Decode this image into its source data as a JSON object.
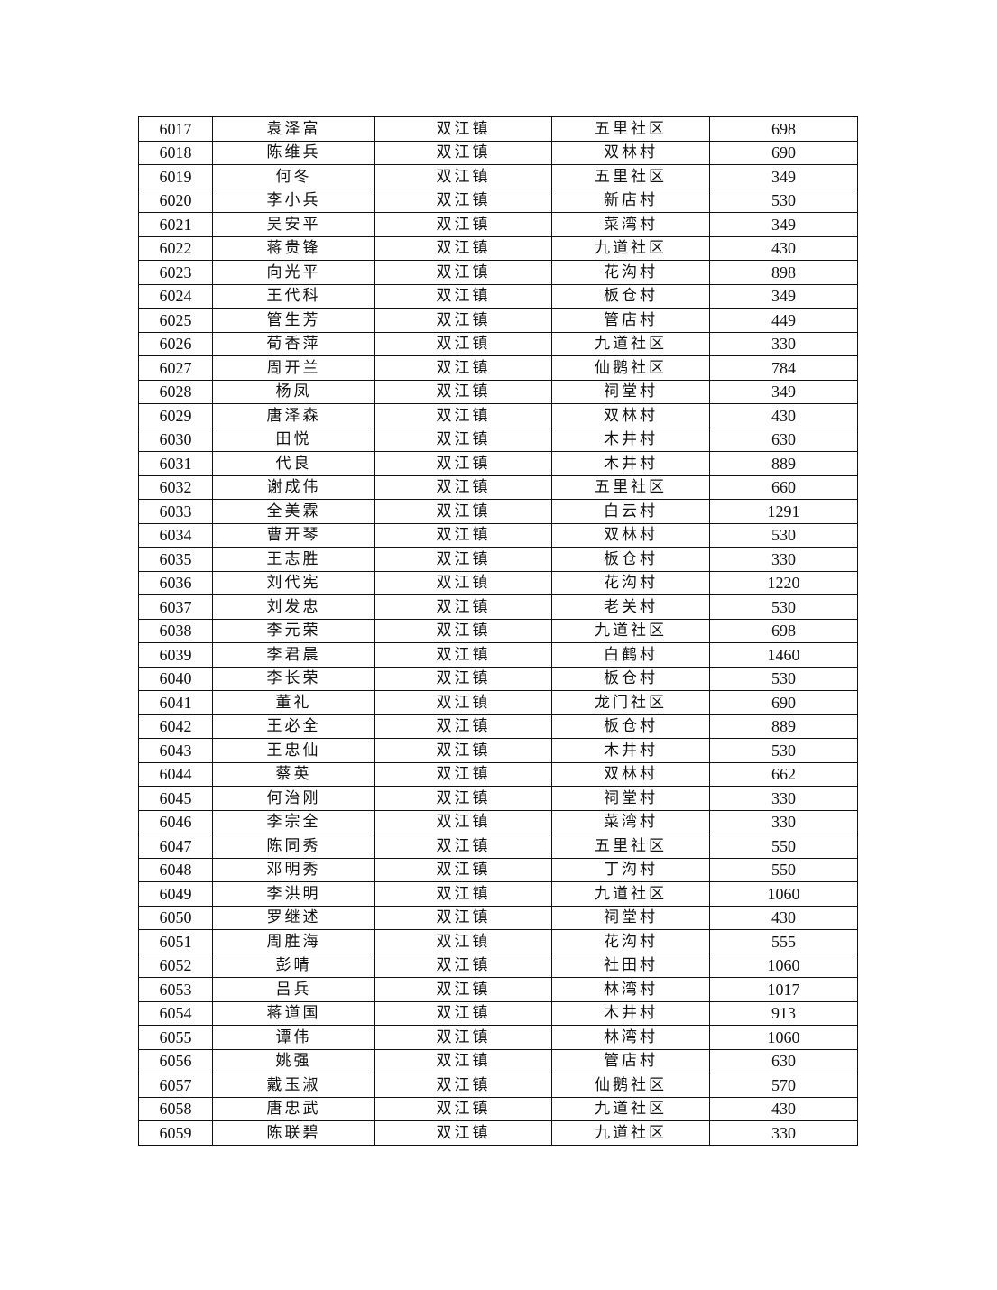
{
  "table": {
    "rows": [
      [
        "6017",
        "袁泽富",
        "双江镇",
        "五里社区",
        "698"
      ],
      [
        "6018",
        "陈维兵",
        "双江镇",
        "双林村",
        "690"
      ],
      [
        "6019",
        "何冬",
        "双江镇",
        "五里社区",
        "349"
      ],
      [
        "6020",
        "李小兵",
        "双江镇",
        "新店村",
        "530"
      ],
      [
        "6021",
        "吴安平",
        "双江镇",
        "菜湾村",
        "349"
      ],
      [
        "6022",
        "蒋贵锋",
        "双江镇",
        "九道社区",
        "430"
      ],
      [
        "6023",
        "向光平",
        "双江镇",
        "花沟村",
        "898"
      ],
      [
        "6024",
        "王代科",
        "双江镇",
        "板仓村",
        "349"
      ],
      [
        "6025",
        "管生芳",
        "双江镇",
        "管店村",
        "449"
      ],
      [
        "6026",
        "荀香萍",
        "双江镇",
        "九道社区",
        "330"
      ],
      [
        "6027",
        "周开兰",
        "双江镇",
        "仙鹅社区",
        "784"
      ],
      [
        "6028",
        "杨凤",
        "双江镇",
        "祠堂村",
        "349"
      ],
      [
        "6029",
        "唐泽森",
        "双江镇",
        "双林村",
        "430"
      ],
      [
        "6030",
        "田悦",
        "双江镇",
        "木井村",
        "630"
      ],
      [
        "6031",
        "代良",
        "双江镇",
        "木井村",
        "889"
      ],
      [
        "6032",
        "谢成伟",
        "双江镇",
        "五里社区",
        "660"
      ],
      [
        "6033",
        "全美霖",
        "双江镇",
        "白云村",
        "1291"
      ],
      [
        "6034",
        "曹开琴",
        "双江镇",
        "双林村",
        "530"
      ],
      [
        "6035",
        "王志胜",
        "双江镇",
        "板仓村",
        "330"
      ],
      [
        "6036",
        "刘代宪",
        "双江镇",
        "花沟村",
        "1220"
      ],
      [
        "6037",
        "刘发忠",
        "双江镇",
        "老关村",
        "530"
      ],
      [
        "6038",
        "李元荣",
        "双江镇",
        "九道社区",
        "698"
      ],
      [
        "6039",
        "李君晨",
        "双江镇",
        "白鹤村",
        "1460"
      ],
      [
        "6040",
        "李长荣",
        "双江镇",
        "板仓村",
        "530"
      ],
      [
        "6041",
        "董礼",
        "双江镇",
        "龙门社区",
        "690"
      ],
      [
        "6042",
        "王必全",
        "双江镇",
        "板仓村",
        "889"
      ],
      [
        "6043",
        "王忠仙",
        "双江镇",
        "木井村",
        "530"
      ],
      [
        "6044",
        "蔡英",
        "双江镇",
        "双林村",
        "662"
      ],
      [
        "6045",
        "何治刚",
        "双江镇",
        "祠堂村",
        "330"
      ],
      [
        "6046",
        "李宗全",
        "双江镇",
        "菜湾村",
        "330"
      ],
      [
        "6047",
        "陈同秀",
        "双江镇",
        "五里社区",
        "550"
      ],
      [
        "6048",
        "邓明秀",
        "双江镇",
        "丁沟村",
        "550"
      ],
      [
        "6049",
        "李洪明",
        "双江镇",
        "九道社区",
        "1060"
      ],
      [
        "6050",
        "罗继述",
        "双江镇",
        "祠堂村",
        "430"
      ],
      [
        "6051",
        "周胜海",
        "双江镇",
        "花沟村",
        "555"
      ],
      [
        "6052",
        "彭晴",
        "双江镇",
        "社田村",
        "1060"
      ],
      [
        "6053",
        "吕兵",
        "双江镇",
        "林湾村",
        "1017"
      ],
      [
        "6054",
        "蒋道国",
        "双江镇",
        "木井村",
        "913"
      ],
      [
        "6055",
        "谭伟",
        "双江镇",
        "林湾村",
        "1060"
      ],
      [
        "6056",
        "姚强",
        "双江镇",
        "管店村",
        "630"
      ],
      [
        "6057",
        "戴玉淑",
        "双江镇",
        "仙鹅社区",
        "570"
      ],
      [
        "6058",
        "唐忠武",
        "双江镇",
        "九道社区",
        "430"
      ],
      [
        "6059",
        "陈联碧",
        "双江镇",
        "九道社区",
        "330"
      ]
    ]
  }
}
